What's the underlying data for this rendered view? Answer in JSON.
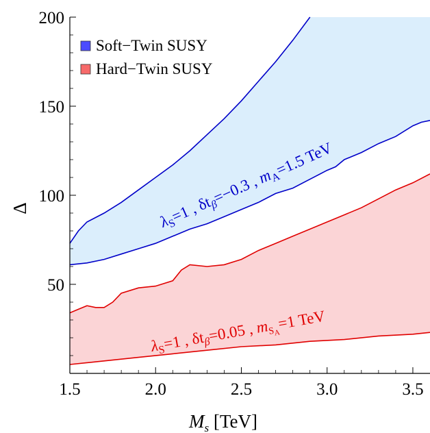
{
  "chart_data": {
    "type": "area",
    "xlabel": "M",
    "xlabel_sub": "s",
    "xlabel_unit": " [TeV]",
    "ylabel": "Δ",
    "xlim": [
      1.5,
      3.6
    ],
    "ylim": [
      0,
      200
    ],
    "x_ticks": [
      1.5,
      2.0,
      2.5,
      3.0,
      3.5
    ],
    "x_tick_labels": [
      "1.5",
      "2.0",
      "2.5",
      "3.0",
      "3.5"
    ],
    "y_ticks": [
      50,
      100,
      150,
      200
    ],
    "y_tick_labels": [
      "50",
      "100",
      "150",
      "200"
    ],
    "grid": false,
    "legend_position": "top-left",
    "series": [
      {
        "name": "Soft−Twin SUSY",
        "color": "#4b4bff",
        "fill_color": "#dbeefc",
        "line_color": "#0000c8",
        "lower": [
          [
            1.5,
            61
          ],
          [
            1.6,
            62
          ],
          [
            1.7,
            64
          ],
          [
            1.8,
            67
          ],
          [
            1.9,
            70
          ],
          [
            2.0,
            73
          ],
          [
            2.1,
            77
          ],
          [
            2.2,
            81
          ],
          [
            2.3,
            84
          ],
          [
            2.4,
            88
          ],
          [
            2.5,
            92
          ],
          [
            2.6,
            96
          ],
          [
            2.7,
            101
          ],
          [
            2.8,
            104
          ],
          [
            2.9,
            109
          ],
          [
            3.0,
            114
          ],
          [
            3.05,
            116
          ],
          [
            3.1,
            120
          ],
          [
            3.2,
            124
          ],
          [
            3.3,
            129
          ],
          [
            3.4,
            133
          ],
          [
            3.5,
            139
          ],
          [
            3.55,
            141
          ],
          [
            3.6,
            142
          ]
        ],
        "upper": [
          [
            1.5,
            73
          ],
          [
            1.55,
            80
          ],
          [
            1.6,
            85
          ],
          [
            1.7,
            90
          ],
          [
            1.8,
            96
          ],
          [
            1.9,
            103
          ],
          [
            2.0,
            110
          ],
          [
            2.1,
            117
          ],
          [
            2.2,
            125
          ],
          [
            2.3,
            134
          ],
          [
            2.4,
            143
          ],
          [
            2.5,
            153
          ],
          [
            2.6,
            164
          ],
          [
            2.7,
            175
          ],
          [
            2.8,
            187
          ],
          [
            2.9,
            200
          ]
        ]
      },
      {
        "name": "Hard−Twin SUSY",
        "color": "#f76a6a",
        "fill_color": "#fbd4d6",
        "line_color": "#e00000",
        "lower": [
          [
            1.5,
            5
          ],
          [
            1.7,
            7
          ],
          [
            1.9,
            9
          ],
          [
            2.1,
            11
          ],
          [
            2.3,
            13
          ],
          [
            2.5,
            15
          ],
          [
            2.7,
            16
          ],
          [
            2.9,
            18
          ],
          [
            3.1,
            19
          ],
          [
            3.3,
            21
          ],
          [
            3.5,
            22
          ],
          [
            3.6,
            23
          ]
        ],
        "upper": [
          [
            1.5,
            34
          ],
          [
            1.55,
            36
          ],
          [
            1.6,
            38
          ],
          [
            1.65,
            37
          ],
          [
            1.7,
            37
          ],
          [
            1.75,
            40
          ],
          [
            1.8,
            45
          ],
          [
            1.9,
            48
          ],
          [
            2.0,
            49
          ],
          [
            2.1,
            52
          ],
          [
            2.15,
            58
          ],
          [
            2.2,
            61
          ],
          [
            2.3,
            60
          ],
          [
            2.4,
            61
          ],
          [
            2.5,
            64
          ],
          [
            2.6,
            69
          ],
          [
            2.7,
            73
          ],
          [
            2.8,
            77
          ],
          [
            2.9,
            81
          ],
          [
            3.0,
            85
          ],
          [
            3.1,
            89
          ],
          [
            3.2,
            93
          ],
          [
            3.3,
            98
          ],
          [
            3.4,
            103
          ],
          [
            3.5,
            107
          ],
          [
            3.6,
            112
          ]
        ]
      }
    ],
    "annotations": {
      "soft": {
        "text": "λS=1 , δtβ=−0.3 ,  mA=1.5 TeV",
        "color": "#0000c8"
      },
      "hard": {
        "text": "λS=1 , δtβ=0.05 ,  mSA=1 TeV",
        "color": "#e00000"
      }
    }
  }
}
